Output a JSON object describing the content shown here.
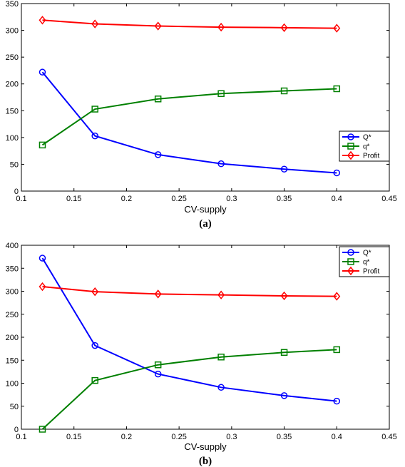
{
  "chart_data": [
    {
      "type": "line",
      "caption": "(a)",
      "xlabel": "CV-supply",
      "ylabel": "",
      "xlim": [
        0.1,
        0.45
      ],
      "ylim": [
        0,
        350
      ],
      "xticks": [
        0.1,
        0.15,
        0.2,
        0.25,
        0.3,
        0.35,
        0.4,
        0.45
      ],
      "yticks": [
        0,
        50,
        100,
        150,
        200,
        250,
        300,
        350
      ],
      "xtick_labels": [
        "0.1",
        "0.15",
        "0.2",
        "0.25",
        "0.3",
        "0.35",
        "0.4",
        "0.45"
      ],
      "ytick_labels": [
        "0",
        "50",
        "100",
        "150",
        "200",
        "250",
        "300",
        "350"
      ],
      "grid": false,
      "legend_position": "right",
      "x": [
        0.12,
        0.17,
        0.23,
        0.29,
        0.35,
        0.4
      ],
      "series": [
        {
          "name": "Q*",
          "color": "#0000ff",
          "marker": "circle",
          "values": [
            222,
            103,
            68,
            51,
            41,
            34
          ]
        },
        {
          "name": "q*",
          "color": "#008000",
          "marker": "square",
          "values": [
            86,
            153,
            172,
            182,
            187,
            191
          ]
        },
        {
          "name": "Profit",
          "color": "#ff0000",
          "marker": "diamond",
          "values": [
            319,
            312,
            308,
            306,
            305,
            304
          ]
        }
      ]
    },
    {
      "type": "line",
      "caption": "(b)",
      "xlabel": "CV-supply",
      "ylabel": "",
      "xlim": [
        0.1,
        0.45
      ],
      "ylim": [
        0,
        400
      ],
      "xticks": [
        0.1,
        0.15,
        0.2,
        0.25,
        0.3,
        0.35,
        0.4,
        0.45
      ],
      "yticks": [
        0,
        50,
        100,
        150,
        200,
        250,
        300,
        350,
        400
      ],
      "xtick_labels": [
        "0.1",
        "0.15",
        "0.2",
        "0.25",
        "0.3",
        "0.35",
        "0.4",
        "0.45"
      ],
      "ytick_labels": [
        "0",
        "50",
        "100",
        "150",
        "200",
        "250",
        "300",
        "350",
        "400"
      ],
      "grid": false,
      "legend_position": "top-right",
      "x": [
        0.12,
        0.17,
        0.23,
        0.29,
        0.35,
        0.4
      ],
      "series": [
        {
          "name": "Q*",
          "color": "#0000ff",
          "marker": "circle",
          "values": [
            372,
            182,
            120,
            91,
            73,
            61
          ]
        },
        {
          "name": "q*",
          "color": "#008000",
          "marker": "square",
          "values": [
            0,
            106,
            140,
            157,
            167,
            173
          ]
        },
        {
          "name": "Profit",
          "color": "#ff0000",
          "marker": "diamond",
          "values": [
            310,
            299,
            294,
            292,
            290,
            289
          ]
        }
      ]
    }
  ]
}
